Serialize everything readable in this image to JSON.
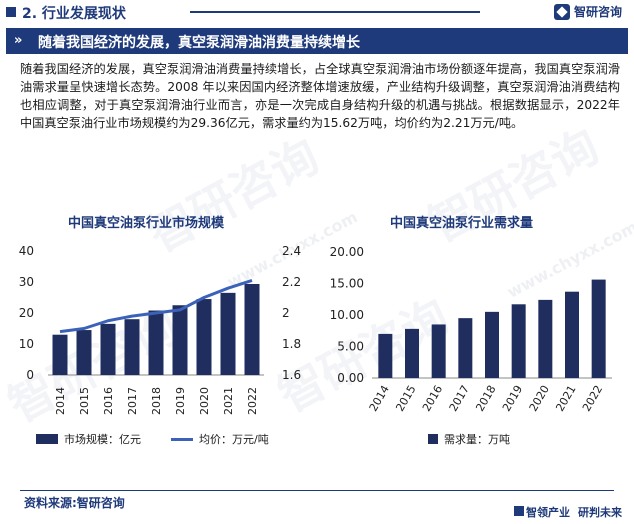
{
  "header": {
    "section_label": "2. 行业发展现状",
    "brand_name": "智研咨询",
    "banner_title": "随着我国经济的发展，真空泵润滑油消费量持续增长"
  },
  "paragraph": "随着我国经济的发展，真空泵润滑油消费量持续增长，占全球真空泵润滑油市场份额逐年提高，我国真空泵润滑油需求量呈快速增长态势。2008 年以来因国内经济整体增速放缓，产业结构升级调整，真空泵润滑油消费结构也相应调整，对于真空泵润滑油行业而言，亦是一次完成自身结构升级的机遇与挑战。根据数据显示，2022年中国真空泵油行业市场规模约为29.36亿元，需求量约为15.62万吨，均价约为2.21万元/吨。",
  "watermarks": {
    "cn": "智研咨询",
    "en": "www.chyxx.com"
  },
  "colors": {
    "primary": "#1f3a7a",
    "bar": "#1f2e5e",
    "line": "#3b62b8"
  },
  "chart_data": [
    {
      "type": "bar",
      "title": "中国真空油泵行业市场规模",
      "categories": [
        "2014",
        "2015",
        "2016",
        "2017",
        "2018",
        "2019",
        "2020",
        "2021",
        "2022"
      ],
      "series": [
        {
          "name": "市场规模：亿元",
          "type": "bar",
          "axis": "left",
          "values": [
            13.0,
            14.5,
            16.5,
            18.0,
            20.8,
            22.5,
            24.5,
            26.5,
            29.36
          ]
        },
        {
          "name": "均价：万元/吨",
          "type": "line",
          "axis": "right",
          "values": [
            1.88,
            1.9,
            1.95,
            1.98,
            2.0,
            2.02,
            2.1,
            2.16,
            2.21
          ]
        }
      ],
      "left_ylim": [
        0,
        40
      ],
      "left_ticks": [
        "0",
        "10",
        "20",
        "30",
        "40"
      ],
      "right_ylim": [
        1.6,
        2.4
      ],
      "right_ticks": [
        "1.6",
        "1.8",
        "2",
        "2.2",
        "2.4"
      ],
      "legend_placement": "bottom"
    },
    {
      "type": "bar",
      "title": "中国真空油泵行业需求量",
      "categories": [
        "2014",
        "2015",
        "2016",
        "2017",
        "2018",
        "2019",
        "2020",
        "2021",
        "2022"
      ],
      "series": [
        {
          "name": "需求量：万吨",
          "values": [
            7.0,
            7.8,
            8.5,
            9.5,
            10.5,
            11.7,
            12.4,
            13.7,
            15.62
          ]
        }
      ],
      "ylim": [
        0,
        20
      ],
      "ticks": [
        "0.00",
        "5.00",
        "10.00",
        "15.00",
        "20.00"
      ],
      "legend_placement": "bottom"
    }
  ],
  "footer": {
    "source": "资料来源:智研咨询",
    "slogan_1": "智领产业",
    "slogan_2": "研判未来"
  }
}
